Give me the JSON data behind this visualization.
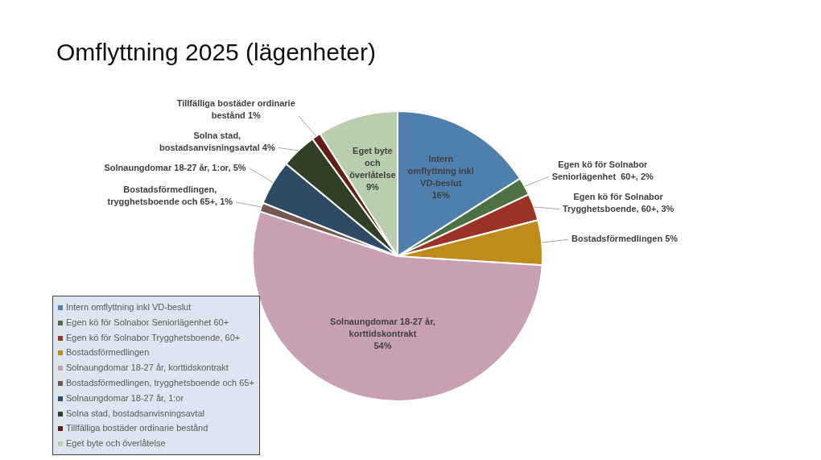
{
  "chart_data": {
    "type": "pie",
    "title": "Omflyttning 2025 (lägenheter)",
    "categories": [
      "Intern omflyttning inkl VD-beslut",
      "Egen kö för Solnabor Seniorlägenhet  60+",
      "Egen kö för Solnabor Trygghetsboende, 60+",
      "Bostadsförmedlingen",
      "Solnaungdomar 18-27 år, korttidskontrakt",
      "Bostadsförmedlingen, trygghetsboende och 65+",
      "Solnaungdomar 18-27 år, 1:or",
      "Solna stad, bostadsanvisningsavtal",
      "Tillfälliga bostäder ordinarie bestånd",
      "Eget byte och överlåtelse"
    ],
    "values": [
      16,
      2,
      3,
      5,
      54,
      1,
      5,
      4,
      1,
      9
    ],
    "colors": [
      "#4f7fac",
      "#4f7043",
      "#9a3326",
      "#bf8c1c",
      "#c9a0b3",
      "#75584f",
      "#2e4b66",
      "#2f4026",
      "#641c18",
      "#b9cdaf"
    ],
    "value_labels": [
      "Intern\nomflyttning inkl\nVD-beslut\n16%",
      "Egen kö för Solnabor\nSeniorlägenhet  60+, 2%",
      "Egen kö för Solnabor\nTrygghetsboende, 60+, 3%",
      "Bostadsförmedlingen 5%",
      "Solnaungdomar 18-27 år,\nkorttidskontrakt\n54%",
      "Bostadsförmedlingen,\ntrygghetsboende och 65+, 1%",
      "Solnaungdomar 18-27 år, 1:or, 5%",
      "Solna stad,\nbostadsanvisningsavtal 4%",
      "Tillfälliga bostäder ordinarie\nbestånd 1%",
      "Eget byte\noch\növerlåtelse\n9%"
    ],
    "legend": "bottom left"
  }
}
